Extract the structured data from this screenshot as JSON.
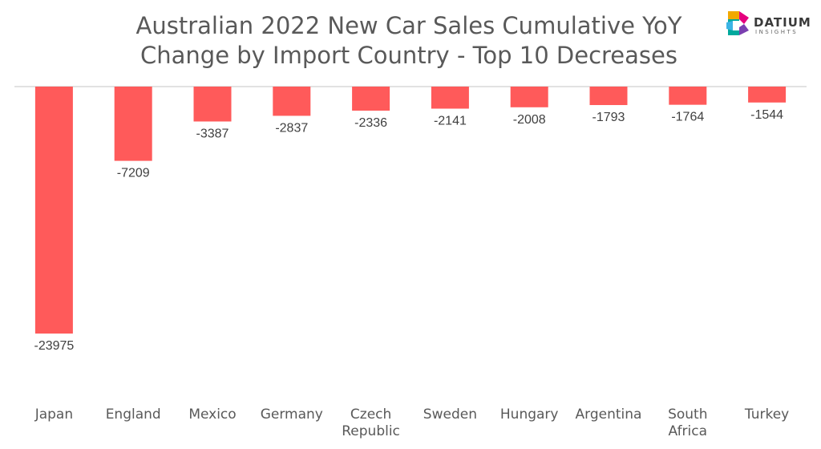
{
  "title_lines": [
    "Australian 2022 New Car Sales Cumulative YoY",
    "Change by Import Country - Top 10 Decreases"
  ],
  "logo": {
    "word": "DATIUM",
    "sub": "INSIGHTS"
  },
  "colors": {
    "bar": "#FF5A5A",
    "axis": "#D9D9D9",
    "text": "#595959",
    "label": "#404040"
  },
  "chart_data": {
    "type": "bar",
    "title": "Australian 2022 New Car Sales Cumulative YoY Change by Import Country - Top 10 Decreases",
    "categories": [
      "Japan",
      "England",
      "Mexico",
      "Germany",
      "Czech Republic",
      "Sweden",
      "Hungary",
      "Argentina",
      "South Africa",
      "Turkey"
    ],
    "category_lines": [
      [
        "Japan"
      ],
      [
        "England"
      ],
      [
        "Mexico"
      ],
      [
        "Germany"
      ],
      [
        "Czech",
        "Republic"
      ],
      [
        "Sweden"
      ],
      [
        "Hungary"
      ],
      [
        "Argentina"
      ],
      [
        "South",
        "Africa"
      ],
      [
        "Turkey"
      ]
    ],
    "values": [
      -23975,
      -7209,
      -3387,
      -2837,
      -2336,
      -2141,
      -2008,
      -1793,
      -1764,
      -1544
    ],
    "data_labels": [
      "-23975",
      "-7209",
      "-3387",
      "-2837",
      "-2336",
      "-2141",
      "-2008",
      "-1793",
      "-1764",
      "-1544"
    ],
    "xlabel": "",
    "ylabel": "",
    "grid": false,
    "legend": "none"
  }
}
